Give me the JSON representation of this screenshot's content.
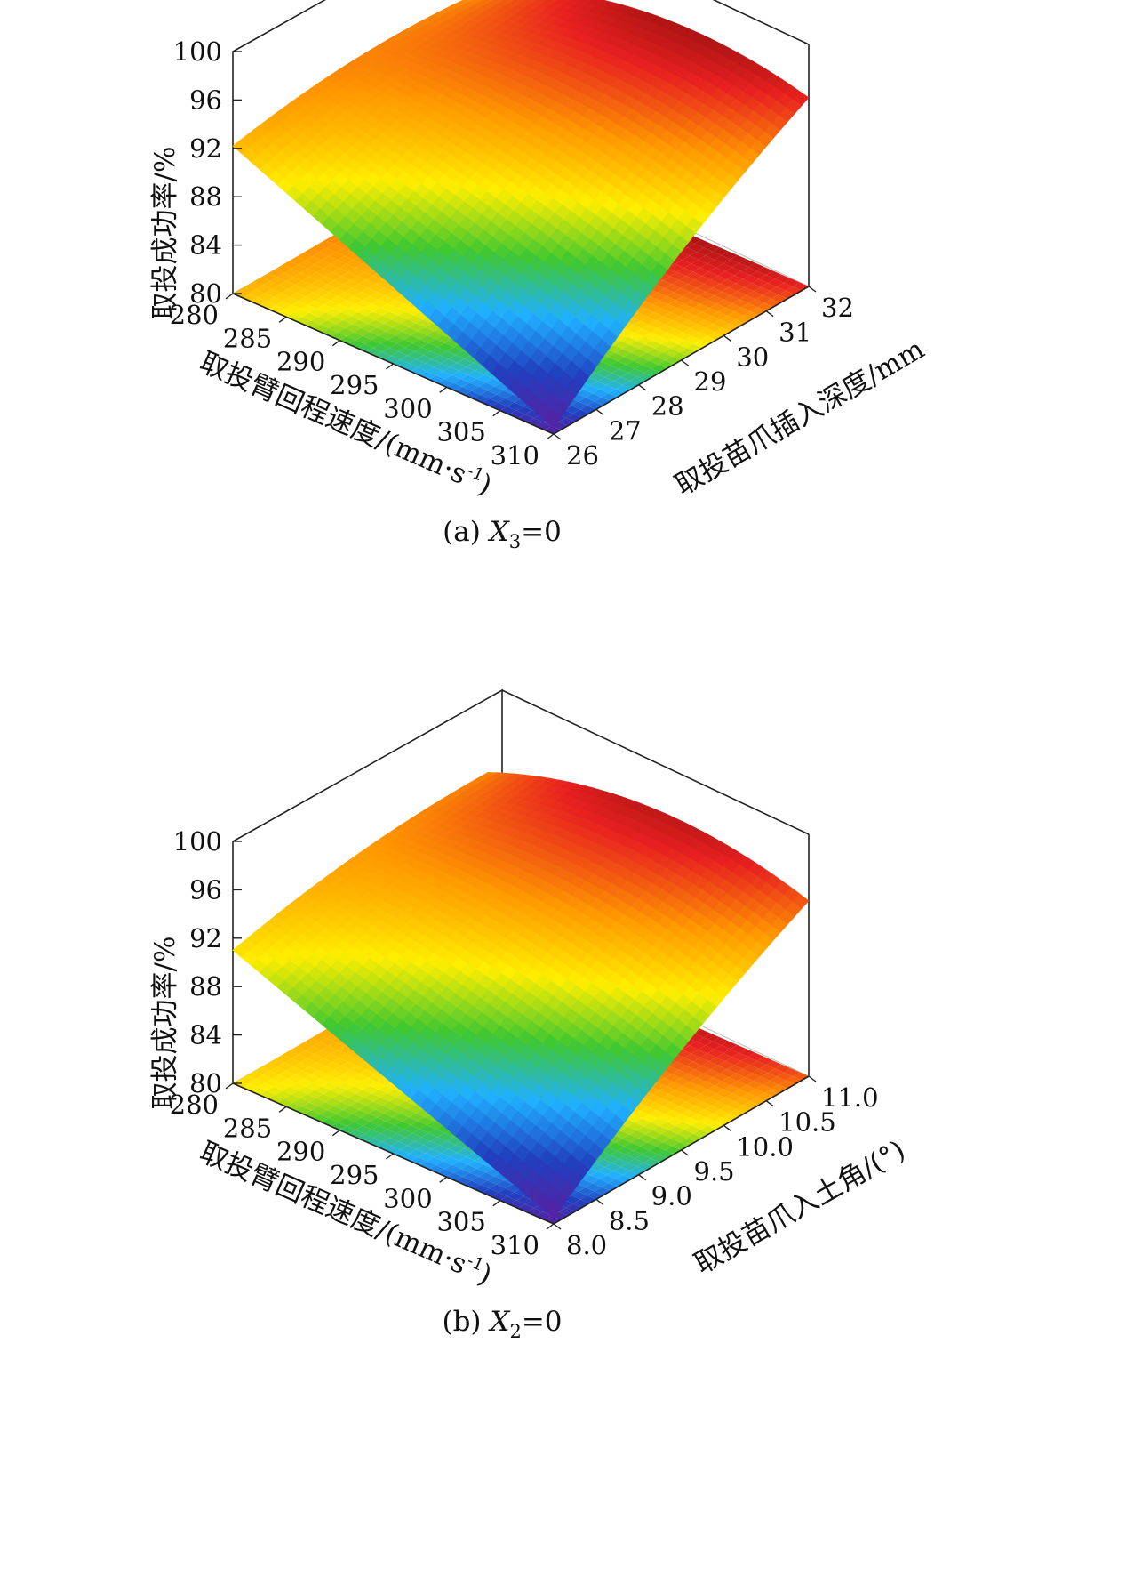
{
  "chart_data": [
    {
      "type": "surface",
      "caption": {
        "prefix": "(a) ",
        "var": "X",
        "sub": "3",
        "suffix": "=0"
      },
      "zlabel": "取投成功率/%",
      "xlabel": "取投臂回程速度/(mm·s",
      "xlabel_sup": "-1",
      "xlabel_close": ")",
      "ylabel": "取投苗爪插入深度/mm",
      "zticks": [
        "100",
        "96",
        "92",
        "88",
        "84",
        "80"
      ],
      "xticks": [
        "280",
        "285",
        "290",
        "295",
        "300",
        "305",
        "310"
      ],
      "yticks": [
        "26",
        "27",
        "28",
        "29",
        "30",
        "31",
        "32"
      ],
      "zlim": [
        80,
        100
      ],
      "xlim": [
        280,
        310
      ],
      "ylim": [
        26,
        32
      ],
      "corner_values": {
        "x280_ymin": 92.2,
        "x280_ymax": 93.0,
        "x310_ymin": 80.5,
        "x310_ymax": 95.6
      },
      "surface_peak": 98.0,
      "colormap": [
        "#5a1ea0",
        "#2040c0",
        "#20b0ff",
        "#40c830",
        "#ffee00",
        "#ff9a00",
        "#e82020",
        "#7a0a0a"
      ]
    },
    {
      "type": "surface",
      "caption": {
        "prefix": "(b) ",
        "var": "X",
        "sub": "2",
        "suffix": "=0"
      },
      "zlabel": "取投成功率/%",
      "xlabel": "取投臂回程速度/(mm·s",
      "xlabel_sup": "-1",
      "xlabel_close": ")",
      "ylabel": "取投苗爪入土角/(°)",
      "zticks": [
        "100",
        "96",
        "92",
        "88",
        "84",
        "80"
      ],
      "xticks": [
        "280",
        "285",
        "290",
        "295",
        "300",
        "305",
        "310"
      ],
      "yticks": [
        "8.0",
        "8.5",
        "9.0",
        "9.5",
        "10.0",
        "10.5",
        "11.0"
      ],
      "zlim": [
        80,
        100
      ],
      "xlim": [
        280,
        310
      ],
      "ylim": [
        8.0,
        11.0
      ],
      "corner_values": {
        "x280_ymin": 91.0,
        "x280_ymax": 93.5,
        "x310_ymin": 80.5,
        "x310_ymax": 94.5
      },
      "surface_peak": 97.0,
      "colormap": [
        "#5a1ea0",
        "#2040c0",
        "#20b0ff",
        "#40c830",
        "#ffee00",
        "#ff9a00",
        "#e82020",
        "#7a0a0a"
      ]
    }
  ]
}
